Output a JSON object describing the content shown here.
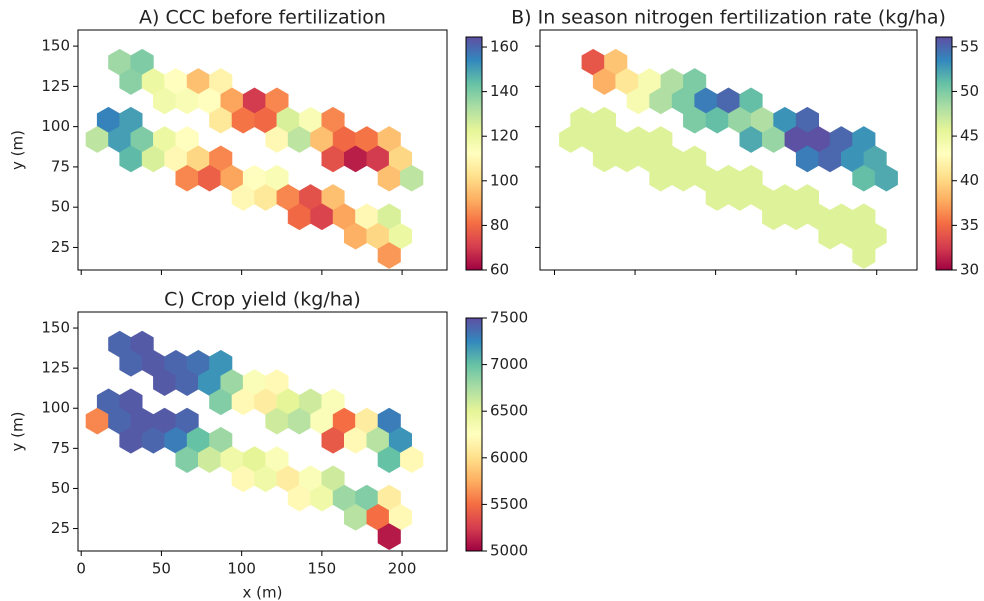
{
  "chart_data": [
    {
      "type": "hexbin",
      "title": "A) CCC before fertilization",
      "ylabel": "y (m)",
      "colormap": "Spectral",
      "x": [
        24,
        38,
        31,
        45,
        59,
        73,
        87,
        52,
        66,
        80,
        94,
        108,
        122,
        17,
        31,
        87,
        101,
        115,
        129,
        143,
        157,
        10,
        24,
        38,
        52,
        66,
        122,
        136,
        150,
        164,
        178,
        192,
        31,
        45,
        59,
        73,
        87,
        157,
        171,
        185,
        199,
        66,
        80,
        94,
        108,
        122,
        192,
        206,
        101,
        115,
        129,
        143,
        157,
        136,
        150,
        164,
        178,
        192,
        171,
        185,
        199,
        192
      ],
      "y": [
        140,
        140,
        128,
        128,
        128,
        128,
        128,
        116,
        116,
        116,
        116,
        116,
        116,
        104,
        104,
        104,
        104,
        104,
        104,
        104,
        104,
        92,
        92,
        92,
        92,
        92,
        92,
        92,
        92,
        92,
        92,
        92,
        80,
        80,
        80,
        80,
        80,
        80,
        80,
        80,
        80,
        68,
        68,
        68,
        68,
        68,
        68,
        68,
        56,
        56,
        56,
        56,
        56,
        44,
        44,
        44,
        44,
        44,
        32,
        32,
        32,
        20
      ],
      "values": [
        135,
        140,
        138,
        120,
        112,
        95,
        108,
        118,
        115,
        112,
        90,
        70,
        85,
        155,
        150,
        105,
        82,
        80,
        125,
        115,
        85,
        130,
        150,
        140,
        120,
        112,
        110,
        130,
        95,
        80,
        82,
        95,
        145,
        125,
        110,
        100,
        85,
        75,
        65,
        70,
        100,
        85,
        78,
        90,
        112,
        115,
        95,
        130,
        110,
        105,
        85,
        75,
        95,
        80,
        72,
        90,
        110,
        125,
        92,
        100,
        120,
        88
      ],
      "xlim": [
        -2,
        228
      ],
      "ylim": [
        11,
        160
      ],
      "xticks": [
        0,
        50,
        100,
        150,
        200
      ],
      "yticks": [
        25,
        50,
        75,
        100,
        125,
        150
      ],
      "x_tick_labels": false,
      "y_tick_labels": true,
      "clim": [
        60,
        164.5
      ],
      "cticks": [
        60,
        80,
        100,
        120,
        140,
        160
      ]
    },
    {
      "type": "hexbin",
      "title": "B) In season nitrogen fertilization rate (kg/ha)",
      "colormap": "Spectral",
      "x": [
        24,
        38,
        31,
        45,
        59,
        73,
        87,
        52,
        66,
        80,
        94,
        108,
        122,
        17,
        31,
        87,
        101,
        115,
        129,
        143,
        157,
        10,
        24,
        38,
        52,
        66,
        122,
        136,
        150,
        164,
        178,
        192,
        31,
        45,
        59,
        73,
        87,
        157,
        171,
        185,
        199,
        66,
        80,
        94,
        108,
        122,
        192,
        206,
        101,
        115,
        129,
        143,
        157,
        136,
        150,
        164,
        178,
        192,
        171,
        185,
        199,
        192
      ],
      "y": [
        140,
        140,
        128,
        128,
        128,
        128,
        128,
        116,
        116,
        116,
        116,
        116,
        116,
        104,
        104,
        104,
        104,
        104,
        104,
        104,
        104,
        92,
        92,
        92,
        92,
        92,
        92,
        92,
        92,
        92,
        92,
        92,
        80,
        80,
        80,
        80,
        80,
        80,
        80,
        80,
        80,
        68,
        68,
        68,
        68,
        68,
        68,
        68,
        56,
        56,
        56,
        56,
        56,
        44,
        44,
        44,
        44,
        44,
        32,
        32,
        32,
        20
      ],
      "values": [
        34,
        39,
        38,
        41,
        44,
        48,
        50,
        44,
        48,
        50,
        54,
        55,
        51,
        46,
        46,
        50,
        51,
        49,
        48,
        53,
        55,
        46,
        46,
        46,
        46,
        46,
        52,
        49,
        56,
        56,
        55,
        53,
        46,
        46,
        46,
        46,
        46,
        54,
        55,
        53,
        52,
        46,
        46,
        46,
        46,
        46,
        51,
        52,
        46,
        46,
        46,
        46,
        46,
        46,
        46,
        46,
        46,
        46,
        46,
        46,
        46,
        46
      ],
      "xlim": [
        -9,
        225
      ],
      "ylim": [
        11,
        160
      ],
      "xticks": [
        0,
        50,
        100,
        150,
        200
      ],
      "yticks": [
        25,
        50,
        75,
        100,
        125,
        150
      ],
      "x_tick_labels": false,
      "y_tick_labels": false,
      "clim": [
        30,
        56.1
      ],
      "cticks": [
        30,
        35,
        40,
        45,
        50,
        55
      ]
    },
    {
      "type": "hexbin",
      "title": "C) Crop yield (kg/ha)",
      "xlabel": "x (m)",
      "ylabel": "y (m)",
      "colormap": "Spectral",
      "x": [
        24,
        38,
        31,
        45,
        59,
        73,
        87,
        52,
        66,
        80,
        94,
        108,
        122,
        17,
        31,
        87,
        101,
        115,
        129,
        143,
        157,
        10,
        24,
        38,
        52,
        66,
        122,
        136,
        150,
        164,
        178,
        192,
        31,
        45,
        59,
        73,
        87,
        157,
        171,
        185,
        199,
        66,
        80,
        94,
        108,
        122,
        192,
        206,
        101,
        115,
        129,
        143,
        157,
        136,
        150,
        164,
        178,
        192,
        171,
        185,
        199,
        192
      ],
      "y": [
        140,
        140,
        128,
        128,
        128,
        128,
        128,
        116,
        116,
        116,
        116,
        116,
        116,
        104,
        104,
        104,
        104,
        104,
        104,
        104,
        104,
        92,
        92,
        92,
        92,
        92,
        92,
        92,
        92,
        92,
        92,
        92,
        80,
        80,
        80,
        80,
        80,
        80,
        80,
        80,
        80,
        68,
        68,
        68,
        68,
        68,
        68,
        68,
        56,
        56,
        56,
        56,
        56,
        44,
        44,
        44,
        44,
        44,
        32,
        32,
        32,
        20
      ],
      "values": [
        7400,
        7450,
        7400,
        7450,
        7400,
        7350,
        7200,
        7450,
        7400,
        7200,
        6800,
        6300,
        6200,
        7400,
        7450,
        6900,
        6200,
        6100,
        6500,
        6600,
        6300,
        5600,
        7400,
        7450,
        7450,
        7400,
        6600,
        6700,
        6300,
        5500,
        6100,
        7300,
        7450,
        7400,
        7300,
        7000,
        6800,
        5400,
        6200,
        6700,
        7200,
        6900,
        6600,
        6400,
        6500,
        6300,
        7000,
        6200,
        6200,
        6400,
        6100,
        6300,
        6600,
        6200,
        6400,
        6800,
        6900,
        6100,
        6700,
        5500,
        6200,
        5100
      ],
      "xlim": [
        -2,
        228
      ],
      "ylim": [
        11,
        160
      ],
      "xticks": [
        0,
        50,
        100,
        150,
        200
      ],
      "yticks": [
        25,
        50,
        75,
        100,
        125,
        150
      ],
      "x_tick_labels": true,
      "y_tick_labels": true,
      "clim": [
        5000,
        7500
      ],
      "cticks": [
        5000,
        5500,
        6000,
        6500,
        7000,
        7500
      ]
    }
  ]
}
